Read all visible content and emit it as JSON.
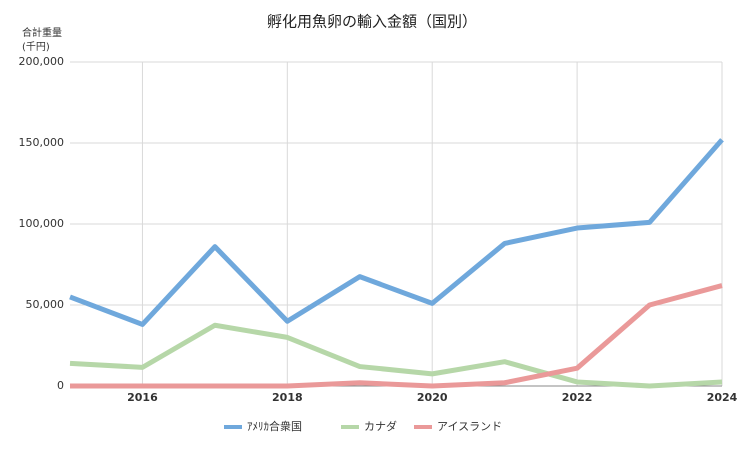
{
  "chart_data": {
    "type": "line",
    "title": "孵化用魚卵の輸入金額（国別）",
    "ylabel": [
      "合計重量",
      "(千円)"
    ],
    "x": [
      2015,
      2016,
      2017,
      2018,
      2019,
      2020,
      2021,
      2022,
      2023,
      2024
    ],
    "xlim": [
      2015,
      2024
    ],
    "xticks": [
      2016,
      2018,
      2020,
      2022,
      2024
    ],
    "ylim": [
      0,
      200000
    ],
    "yticks": [
      0,
      {
        "value": 50000,
        "label": "50,000"
      },
      {
        "value": 100000,
        "label": "100,000"
      },
      {
        "value": 150000,
        "label": "150,000"
      },
      {
        "value": 200000,
        "label": "200,000"
      }
    ],
    "grid": true,
    "legend": "bottom",
    "series": [
      {
        "name": "ｱﾒﾘｶ合衆国",
        "color": "#6fa8dc",
        "values": [
          55000,
          38000,
          86000,
          40000,
          67500,
          51000,
          88000,
          97500,
          101000,
          152000
        ]
      },
      {
        "name": "カナダ",
        "color": "#b6d7a8",
        "values": [
          14000,
          11500,
          37500,
          30000,
          12000,
          7500,
          15000,
          2500,
          0,
          2500
        ]
      },
      {
        "name": "アイスランド",
        "color": "#ea9999",
        "values": [
          0,
          0,
          0,
          0,
          2000,
          0,
          2000,
          11000,
          50000,
          62000
        ]
      }
    ]
  }
}
